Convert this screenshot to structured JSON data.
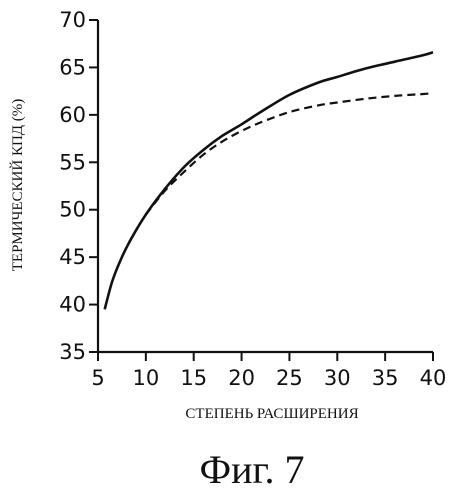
{
  "chart_data": {
    "type": "line",
    "title": "",
    "xlabel": "СТЕПЕНЬ РАСШИРЕНИЯ",
    "ylabel": "ТЕРМИЧЕСКИЙ КПД (%)",
    "xlim": [
      5,
      40
    ],
    "ylim": [
      35,
      70
    ],
    "xticks": [
      "5",
      "10",
      "15",
      "20",
      "25",
      "30",
      "35",
      "40"
    ],
    "yticks": [
      "35",
      "40",
      "45",
      "50",
      "55",
      "60",
      "65",
      "70"
    ],
    "grid": false,
    "series": [
      {
        "style": "solid",
        "x": [
          5.7,
          6.5,
          7.5,
          8.5,
          10,
          12,
          14,
          16,
          18,
          20,
          22,
          25,
          28,
          30,
          33,
          36,
          39,
          40
        ],
        "y": [
          39.5,
          42.5,
          45.0,
          47.0,
          49.5,
          52.2,
          54.5,
          56.3,
          57.8,
          59.0,
          60.3,
          62.1,
          63.4,
          64.0,
          64.9,
          65.6,
          66.3,
          66.6
        ]
      },
      {
        "style": "dashed",
        "x": [
          10,
          12,
          14,
          16,
          18,
          20,
          22,
          25,
          28,
          30,
          33,
          36,
          39,
          40
        ],
        "y": [
          49.5,
          52.0,
          54.0,
          55.8,
          57.2,
          58.3,
          59.2,
          60.3,
          61.0,
          61.3,
          61.7,
          62.0,
          62.2,
          62.3
        ]
      }
    ]
  },
  "caption": "Фиг. 7"
}
